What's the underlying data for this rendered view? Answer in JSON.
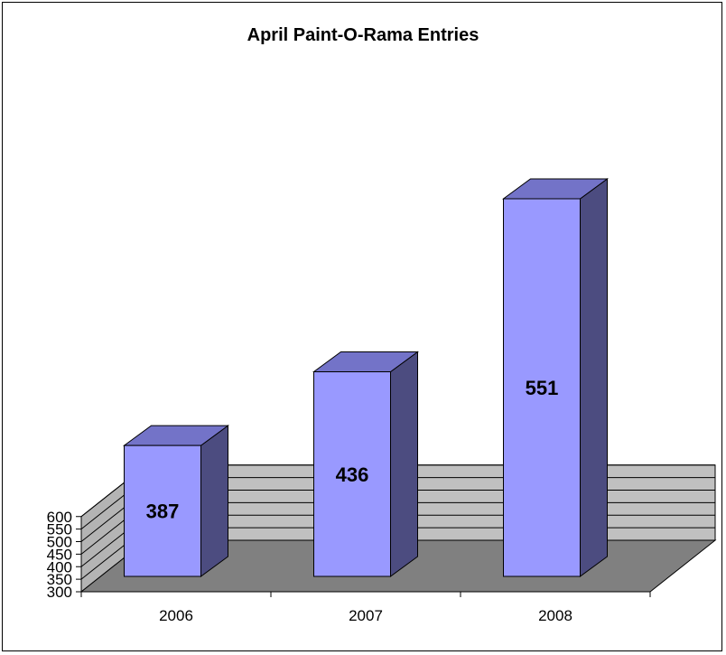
{
  "chart_data": {
    "type": "bar",
    "title": "April Paint-O-Rama Entries",
    "categories": [
      "2006",
      "2007",
      "2008"
    ],
    "values": [
      387,
      436,
      551
    ],
    "data_labels": [
      "387",
      "436",
      "551"
    ],
    "ylim": [
      300,
      600
    ],
    "yticks": [
      300,
      350,
      400,
      450,
      500,
      550,
      600
    ],
    "ytick_labels": [
      "300",
      "350",
      "400",
      "450",
      "500",
      "550",
      "600"
    ],
    "xlabel": "",
    "ylabel": "",
    "grid": true,
    "style": "3d",
    "colors": {
      "bar_front": "#9999ff",
      "bar_top": "#7373c8",
      "bar_side": "#4c4c80",
      "back_wall": "#c0c0c0",
      "side_wall": "#b4b4b4",
      "floor": "#808080"
    }
  }
}
